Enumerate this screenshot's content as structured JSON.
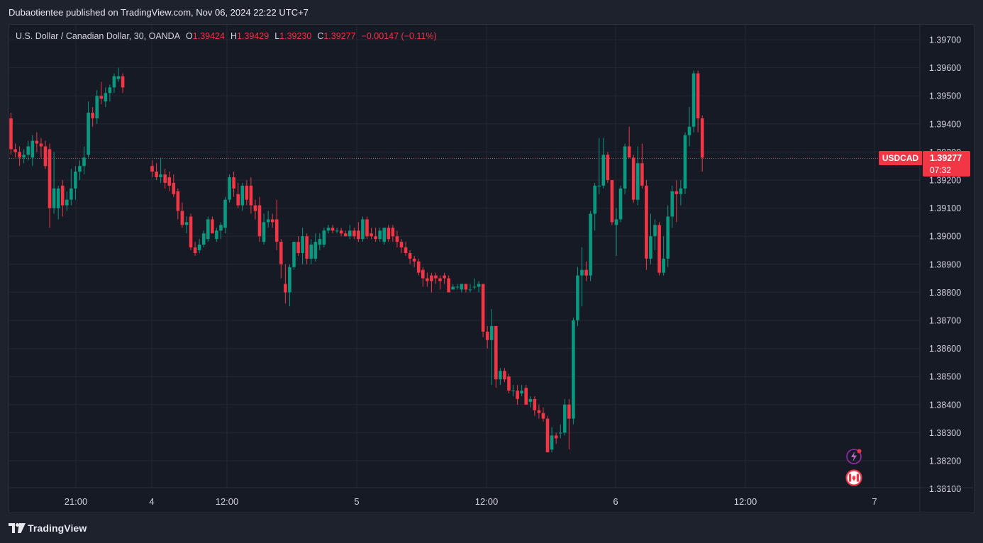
{
  "header": {
    "publisher_line": "Dubaotientee published on TradingView.com, Nov 06, 2024 22:22 UTC+7"
  },
  "legend": {
    "symbol_line": "U.S. Dollar / Canadian Dollar, 30, OANDA",
    "o_label": "O",
    "o_value": "1.39424",
    "h_label": "H",
    "h_value": "1.39429",
    "l_label": "L",
    "l_value": "1.39230",
    "c_label": "C",
    "c_value": "1.39277",
    "change": "−0.00147 (−0.11%)"
  },
  "price_tag": {
    "symbol": "USDCAD",
    "price": "1.39277",
    "countdown": "07:32"
  },
  "footer": {
    "brand": "TradingView"
  },
  "icons": [
    "tradingview-logo-icon",
    "lightning-event-icon",
    "canada-flag-icon"
  ],
  "colors": {
    "background": "#1e222d",
    "chart_background": "#161a25",
    "up": "#089981",
    "down": "#f23645",
    "grid": "#242833",
    "text": "#d1d4dc"
  },
  "chart_data": {
    "type": "candlestick",
    "instrument": "USDCAD",
    "interval": "30",
    "ylim": [
      1.381,
      1.3975
    ],
    "y_ticks": [
      "1.39700",
      "1.39600",
      "1.39500",
      "1.39400",
      "1.39300",
      "1.39200",
      "1.39100",
      "1.39000",
      "1.38900",
      "1.38800",
      "1.38700",
      "1.38600",
      "1.38500",
      "1.38400",
      "1.38300",
      "1.38200",
      "1.38100"
    ],
    "x_ticks": [
      "21:00",
      "4",
      "12:00",
      "5",
      "12:00",
      "6",
      "12:00",
      "7"
    ],
    "current_price": 1.39277,
    "candles": [
      {
        "o": 1.3942,
        "h": 1.3944,
        "l": 1.3929,
        "c": 1.3931
      },
      {
        "o": 1.3931,
        "h": 1.3933,
        "l": 1.3928,
        "c": 1.393
      },
      {
        "o": 1.393,
        "h": 1.3932,
        "l": 1.3925,
        "c": 1.3928
      },
      {
        "o": 1.3928,
        "h": 1.3931,
        "l": 1.3926,
        "c": 1.3929
      },
      {
        "o": 1.3929,
        "h": 1.3934,
        "l": 1.3927,
        "c": 1.3932
      },
      {
        "o": 1.3928,
        "h": 1.3936,
        "l": 1.3925,
        "c": 1.3934
      },
      {
        "o": 1.3934,
        "h": 1.3937,
        "l": 1.393,
        "c": 1.3933
      },
      {
        "o": 1.3933,
        "h": 1.3935,
        "l": 1.3928,
        "c": 1.3932
      },
      {
        "o": 1.3932,
        "h": 1.3934,
        "l": 1.3924,
        "c": 1.3925
      },
      {
        "o": 1.3931,
        "h": 1.3933,
        "l": 1.3903,
        "c": 1.391
      },
      {
        "o": 1.391,
        "h": 1.393,
        "l": 1.3908,
        "c": 1.3917
      },
      {
        "o": 1.391,
        "h": 1.3918,
        "l": 1.3906,
        "c": 1.3917
      },
      {
        "o": 1.3918,
        "h": 1.392,
        "l": 1.3907,
        "c": 1.3911
      },
      {
        "o": 1.3911,
        "h": 1.3916,
        "l": 1.3909,
        "c": 1.3913
      },
      {
        "o": 1.3913,
        "h": 1.3924,
        "l": 1.3911,
        "c": 1.3917
      },
      {
        "o": 1.3917,
        "h": 1.3925,
        "l": 1.3913,
        "c": 1.3923
      },
      {
        "o": 1.3923,
        "h": 1.3927,
        "l": 1.392,
        "c": 1.3925
      },
      {
        "o": 1.3925,
        "h": 1.3932,
        "l": 1.3922,
        "c": 1.3928
      },
      {
        "o": 1.3929,
        "h": 1.3948,
        "l": 1.3928,
        "c": 1.3944
      },
      {
        "o": 1.3944,
        "h": 1.3946,
        "l": 1.3939,
        "c": 1.3942
      },
      {
        "o": 1.3942,
        "h": 1.3952,
        "l": 1.394,
        "c": 1.395
      },
      {
        "o": 1.395,
        "h": 1.3955,
        "l": 1.3947,
        "c": 1.3949
      },
      {
        "o": 1.3948,
        "h": 1.3953,
        "l": 1.3946,
        "c": 1.3951
      },
      {
        "o": 1.3951,
        "h": 1.3954,
        "l": 1.3948,
        "c": 1.3953
      },
      {
        "o": 1.3953,
        "h": 1.3958,
        "l": 1.3951,
        "c": 1.3957
      },
      {
        "o": 1.3956,
        "h": 1.396,
        "l": 1.3955,
        "c": 1.3957
      },
      {
        "o": 1.3957,
        "h": 1.3958,
        "l": 1.3951,
        "c": 1.3953
      }
    ],
    "candles_after_gap": [
      {
        "o": 1.3925,
        "h": 1.3927,
        "l": 1.3921,
        "c": 1.3923
      },
      {
        "o": 1.3923,
        "h": 1.3926,
        "l": 1.392,
        "c": 1.3921
      },
      {
        "o": 1.3921,
        "h": 1.3928,
        "l": 1.3919,
        "c": 1.3922
      },
      {
        "o": 1.3922,
        "h": 1.3924,
        "l": 1.3917,
        "c": 1.3919
      },
      {
        "o": 1.3921,
        "h": 1.3923,
        "l": 1.3916,
        "c": 1.3918
      },
      {
        "o": 1.3919,
        "h": 1.3922,
        "l": 1.3914,
        "c": 1.3915
      },
      {
        "o": 1.3916,
        "h": 1.3917,
        "l": 1.3906,
        "c": 1.3909
      },
      {
        "o": 1.3909,
        "h": 1.3912,
        "l": 1.3903,
        "c": 1.3904
      },
      {
        "o": 1.3904,
        "h": 1.3907,
        "l": 1.3901,
        "c": 1.3905
      },
      {
        "o": 1.3907,
        "h": 1.3908,
        "l": 1.3895,
        "c": 1.3896
      },
      {
        "o": 1.3896,
        "h": 1.3898,
        "l": 1.3893,
        "c": 1.3894
      },
      {
        "o": 1.3895,
        "h": 1.3899,
        "l": 1.3894,
        "c": 1.3897
      },
      {
        "o": 1.3897,
        "h": 1.3902,
        "l": 1.3896,
        "c": 1.3901
      },
      {
        "o": 1.3899,
        "h": 1.3907,
        "l": 1.3898,
        "c": 1.3906
      },
      {
        "o": 1.3906,
        "h": 1.3907,
        "l": 1.3901,
        "c": 1.3901
      },
      {
        "o": 1.3899,
        "h": 1.3903,
        "l": 1.3898,
        "c": 1.3902
      },
      {
        "o": 1.3902,
        "h": 1.3905,
        "l": 1.3899,
        "c": 1.3904
      },
      {
        "o": 1.3903,
        "h": 1.3914,
        "l": 1.3901,
        "c": 1.3913
      },
      {
        "o": 1.3913,
        "h": 1.3922,
        "l": 1.3912,
        "c": 1.3921
      },
      {
        "o": 1.3921,
        "h": 1.3923,
        "l": 1.3914,
        "c": 1.3917
      },
      {
        "o": 1.3915,
        "h": 1.3919,
        "l": 1.391,
        "c": 1.3911
      },
      {
        "o": 1.3911,
        "h": 1.3919,
        "l": 1.3909,
        "c": 1.3918
      },
      {
        "o": 1.3918,
        "h": 1.392,
        "l": 1.3911,
        "c": 1.3913
      },
      {
        "o": 1.3918,
        "h": 1.3921,
        "l": 1.3908,
        "c": 1.3911
      },
      {
        "o": 1.3911,
        "h": 1.3913,
        "l": 1.3906,
        "c": 1.3909
      },
      {
        "o": 1.3911,
        "h": 1.3914,
        "l": 1.3898,
        "c": 1.39
      },
      {
        "o": 1.3898,
        "h": 1.3908,
        "l": 1.3897,
        "c": 1.3905
      },
      {
        "o": 1.3905,
        "h": 1.3909,
        "l": 1.3903,
        "c": 1.3906
      },
      {
        "o": 1.3906,
        "h": 1.3908,
        "l": 1.3903,
        "c": 1.3905
      },
      {
        "o": 1.3906,
        "h": 1.3913,
        "l": 1.3895,
        "c": 1.3898
      },
      {
        "o": 1.3898,
        "h": 1.3899,
        "l": 1.3885,
        "c": 1.389
      },
      {
        "o": 1.3883,
        "h": 1.389,
        "l": 1.3876,
        "c": 1.388
      },
      {
        "o": 1.388,
        "h": 1.389,
        "l": 1.3875,
        "c": 1.3889
      },
      {
        "o": 1.3889,
        "h": 1.3898,
        "l": 1.3888,
        "c": 1.3898
      },
      {
        "o": 1.3898,
        "h": 1.39,
        "l": 1.3893,
        "c": 1.3894
      },
      {
        "o": 1.3894,
        "h": 1.3903,
        "l": 1.389,
        "c": 1.39
      },
      {
        "o": 1.39,
        "h": 1.3901,
        "l": 1.389,
        "c": 1.3892
      },
      {
        "o": 1.3892,
        "h": 1.3899,
        "l": 1.389,
        "c": 1.3897
      },
      {
        "o": 1.3892,
        "h": 1.3901,
        "l": 1.3891,
        "c": 1.3898
      },
      {
        "o": 1.3897,
        "h": 1.3901,
        "l": 1.3895,
        "c": 1.3899
      },
      {
        "o": 1.3897,
        "h": 1.3903,
        "l": 1.3896,
        "c": 1.3902
      },
      {
        "o": 1.3902,
        "h": 1.3904,
        "l": 1.3901,
        "c": 1.3903
      },
      {
        "o": 1.3903,
        "h": 1.3904,
        "l": 1.3901,
        "c": 1.3902
      },
      {
        "o": 1.3902,
        "h": 1.3903,
        "l": 1.3901,
        "c": 1.3902
      },
      {
        "o": 1.3902,
        "h": 1.3903,
        "l": 1.39,
        "c": 1.3901
      },
      {
        "o": 1.3901,
        "h": 1.3902,
        "l": 1.39,
        "c": 1.39
      },
      {
        "o": 1.39,
        "h": 1.3904,
        "l": 1.3899,
        "c": 1.3902
      },
      {
        "o": 1.3902,
        "h": 1.3903,
        "l": 1.3899,
        "c": 1.39
      },
      {
        "o": 1.3902,
        "h": 1.3905,
        "l": 1.3898,
        "c": 1.3899
      },
      {
        "o": 1.3899,
        "h": 1.3907,
        "l": 1.3898,
        "c": 1.3906
      },
      {
        "o": 1.3906,
        "h": 1.3907,
        "l": 1.3899,
        "c": 1.39
      },
      {
        "o": 1.3901,
        "h": 1.3903,
        "l": 1.3899,
        "c": 1.39
      },
      {
        "o": 1.39,
        "h": 1.3903,
        "l": 1.3898,
        "c": 1.3899
      },
      {
        "o": 1.3899,
        "h": 1.3903,
        "l": 1.3898,
        "c": 1.3902
      },
      {
        "o": 1.3898,
        "h": 1.3903,
        "l": 1.3897,
        "c": 1.3903
      },
      {
        "o": 1.3903,
        "h": 1.3904,
        "l": 1.3898,
        "c": 1.3899
      },
      {
        "o": 1.3903,
        "h": 1.3904,
        "l": 1.3898,
        "c": 1.39
      },
      {
        "o": 1.39,
        "h": 1.3902,
        "l": 1.3896,
        "c": 1.3898
      },
      {
        "o": 1.3898,
        "h": 1.3899,
        "l": 1.3894,
        "c": 1.3896
      },
      {
        "o": 1.3896,
        "h": 1.3898,
        "l": 1.3893,
        "c": 1.3894
      },
      {
        "o": 1.3894,
        "h": 1.3895,
        "l": 1.389,
        "c": 1.3892
      },
      {
        "o": 1.3892,
        "h": 1.3893,
        "l": 1.3889,
        "c": 1.3891
      },
      {
        "o": 1.3891,
        "h": 1.3892,
        "l": 1.3886,
        "c": 1.3887
      },
      {
        "o": 1.3888,
        "h": 1.3889,
        "l": 1.3882,
        "c": 1.3885
      },
      {
        "o": 1.3885,
        "h": 1.3887,
        "l": 1.3882,
        "c": 1.3884
      },
      {
        "o": 1.3886,
        "h": 1.3887,
        "l": 1.388,
        "c": 1.3884
      },
      {
        "o": 1.3886,
        "h": 1.3887,
        "l": 1.3883,
        "c": 1.3885
      },
      {
        "o": 1.3885,
        "h": 1.3886,
        "l": 1.3881,
        "c": 1.3884
      },
      {
        "o": 1.3886,
        "h": 1.3887,
        "l": 1.3883,
        "c": 1.3885
      },
      {
        "o": 1.3885,
        "h": 1.3886,
        "l": 1.388,
        "c": 1.388
      },
      {
        "o": 1.3881,
        "h": 1.3883,
        "l": 1.3881,
        "c": 1.3882
      },
      {
        "o": 1.3882,
        "h": 1.3883,
        "l": 1.3881,
        "c": 1.3882
      },
      {
        "o": 1.3881,
        "h": 1.3883,
        "l": 1.388,
        "c": 1.3883
      },
      {
        "o": 1.3883,
        "h": 1.3883,
        "l": 1.388,
        "c": 1.3881
      },
      {
        "o": 1.3881,
        "h": 1.3883,
        "l": 1.388,
        "c": 1.3881
      },
      {
        "o": 1.3882,
        "h": 1.3885,
        "l": 1.3881,
        "c": 1.3882
      },
      {
        "o": 1.3882,
        "h": 1.3884,
        "l": 1.388,
        "c": 1.3883
      },
      {
        "o": 1.3883,
        "h": 1.3883,
        "l": 1.3864,
        "c": 1.3866
      },
      {
        "o": 1.3866,
        "h": 1.3868,
        "l": 1.386,
        "c": 1.3863
      },
      {
        "o": 1.3863,
        "h": 1.3874,
        "l": 1.3847,
        "c": 1.3868
      },
      {
        "o": 1.3868,
        "h": 1.3868,
        "l": 1.3846,
        "c": 1.3849
      },
      {
        "o": 1.3849,
        "h": 1.3853,
        "l": 1.3847,
        "c": 1.3852
      },
      {
        "o": 1.3852,
        "h": 1.3853,
        "l": 1.3848,
        "c": 1.3849
      },
      {
        "o": 1.385,
        "h": 1.3851,
        "l": 1.3844,
        "c": 1.3845
      },
      {
        "o": 1.3845,
        "h": 1.3847,
        "l": 1.3843,
        "c": 1.3845
      },
      {
        "o": 1.3845,
        "h": 1.3847,
        "l": 1.384,
        "c": 1.3842
      },
      {
        "o": 1.3844,
        "h": 1.3847,
        "l": 1.3843,
        "c": 1.3845
      },
      {
        "o": 1.3846,
        "h": 1.3847,
        "l": 1.384,
        "c": 1.384
      },
      {
        "o": 1.3841,
        "h": 1.3843,
        "l": 1.3839,
        "c": 1.3842
      },
      {
        "o": 1.3842,
        "h": 1.3843,
        "l": 1.3836,
        "c": 1.3838
      },
      {
        "o": 1.3838,
        "h": 1.384,
        "l": 1.3835,
        "c": 1.3837
      },
      {
        "o": 1.3837,
        "h": 1.3839,
        "l": 1.3834,
        "c": 1.3835
      },
      {
        "o": 1.3835,
        "h": 1.3836,
        "l": 1.3823,
        "c": 1.3823
      },
      {
        "o": 1.3824,
        "h": 1.3832,
        "l": 1.3823,
        "c": 1.3829
      },
      {
        "o": 1.3829,
        "h": 1.383,
        "l": 1.3826,
        "c": 1.3828
      },
      {
        "o": 1.383,
        "h": 1.3833,
        "l": 1.3828,
        "c": 1.383
      },
      {
        "o": 1.383,
        "h": 1.3842,
        "l": 1.3829,
        "c": 1.384
      },
      {
        "o": 1.384,
        "h": 1.3842,
        "l": 1.3824,
        "c": 1.3835
      },
      {
        "o": 1.3835,
        "h": 1.3871,
        "l": 1.3833,
        "c": 1.387
      },
      {
        "o": 1.387,
        "h": 1.3889,
        "l": 1.3868,
        "c": 1.3886
      },
      {
        "o": 1.3886,
        "h": 1.3896,
        "l": 1.3875,
        "c": 1.3888
      },
      {
        "o": 1.3888,
        "h": 1.3891,
        "l": 1.3884,
        "c": 1.3886
      },
      {
        "o": 1.3886,
        "h": 1.3909,
        "l": 1.3884,
        "c": 1.3908
      },
      {
        "o": 1.3908,
        "h": 1.3919,
        "l": 1.3902,
        "c": 1.3918
      },
      {
        "o": 1.3918,
        "h": 1.3935,
        "l": 1.3915,
        "c": 1.3918
      },
      {
        "o": 1.3918,
        "h": 1.3935,
        "l": 1.3917,
        "c": 1.3929
      },
      {
        "o": 1.3929,
        "h": 1.393,
        "l": 1.3919,
        "c": 1.392
      },
      {
        "o": 1.392,
        "h": 1.392,
        "l": 1.3904,
        "c": 1.3905
      },
      {
        "o": 1.3904,
        "h": 1.391,
        "l": 1.3893,
        "c": 1.3906
      },
      {
        "o": 1.3906,
        "h": 1.3918,
        "l": 1.3905,
        "c": 1.3917
      },
      {
        "o": 1.3917,
        "h": 1.3933,
        "l": 1.3915,
        "c": 1.3932
      },
      {
        "o": 1.3932,
        "h": 1.3939,
        "l": 1.3929,
        "c": 1.3928
      },
      {
        "o": 1.3928,
        "h": 1.3929,
        "l": 1.3912,
        "c": 1.3913
      },
      {
        "o": 1.3913,
        "h": 1.3932,
        "l": 1.3911,
        "c": 1.3926
      },
      {
        "o": 1.3926,
        "h": 1.3933,
        "l": 1.3917,
        "c": 1.3918
      },
      {
        "o": 1.3918,
        "h": 1.392,
        "l": 1.3888,
        "c": 1.3892
      },
      {
        "o": 1.3892,
        "h": 1.3908,
        "l": 1.389,
        "c": 1.39
      },
      {
        "o": 1.39,
        "h": 1.3906,
        "l": 1.3895,
        "c": 1.3904
      },
      {
        "o": 1.3904,
        "h": 1.3905,
        "l": 1.3886,
        "c": 1.3887
      },
      {
        "o": 1.3887,
        "h": 1.39,
        "l": 1.3886,
        "c": 1.3892
      },
      {
        "o": 1.3892,
        "h": 1.3911,
        "l": 1.3889,
        "c": 1.3907
      },
      {
        "o": 1.3907,
        "h": 1.3918,
        "l": 1.3903,
        "c": 1.3916
      },
      {
        "o": 1.3916,
        "h": 1.392,
        "l": 1.3905,
        "c": 1.3915
      },
      {
        "o": 1.3915,
        "h": 1.392,
        "l": 1.3911,
        "c": 1.3917
      },
      {
        "o": 1.3917,
        "h": 1.3937,
        "l": 1.3915,
        "c": 1.3936
      },
      {
        "o": 1.3936,
        "h": 1.3946,
        "l": 1.3932,
        "c": 1.3939
      },
      {
        "o": 1.3939,
        "h": 1.3959,
        "l": 1.3937,
        "c": 1.3958
      },
      {
        "o": 1.3958,
        "h": 1.3959,
        "l": 1.3937,
        "c": 1.3942
      },
      {
        "o": 1.3942,
        "h": 1.3943,
        "l": 1.3923,
        "c": 1.3928
      }
    ]
  }
}
